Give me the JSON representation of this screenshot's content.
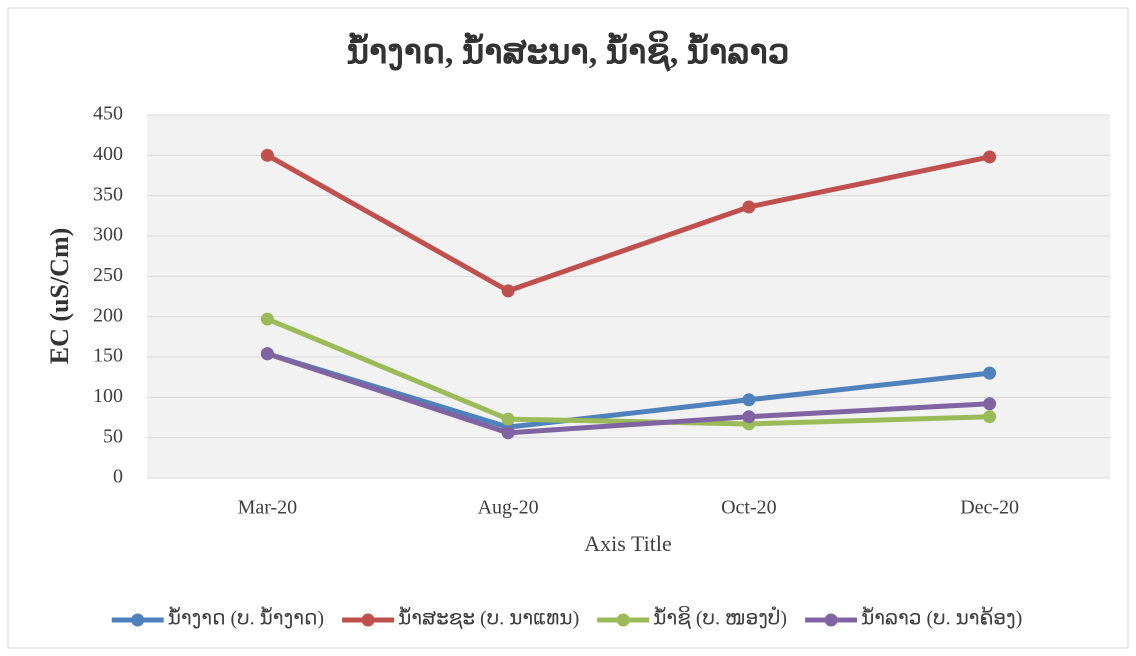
{
  "chart_data": {
    "type": "line",
    "title": "ນ້ຳງາດ, ນ້ຳສະນາ, ນ້ຳຊິ, ນ້ຳລາວ",
    "x_label": "Axis Title",
    "y_label": "EC (uS/Cm)",
    "categories": [
      "Mar-20",
      "Aug-20",
      "Oct-20",
      "Dec-20"
    ],
    "series": [
      {
        "name": "ນ້ຳງາດ (ບ. ນ້ຳງາດ)",
        "color": "#4f81bd",
        "values": [
          154,
          63,
          97,
          130
        ]
      },
      {
        "name": "ນ້ຳສະຊະ (ບ. ນາແທນ)",
        "color": "#c0504d",
        "values": [
          400,
          232,
          336,
          398
        ]
      },
      {
        "name": "ນ້ຳຊິ (ບ. ໜອງປໍ)",
        "color": "#9bbb59",
        "values": [
          197,
          73,
          67,
          76
        ]
      },
      {
        "name": "ນ້ຳລາວ (ບ. ນາຄ້ອງ)",
        "color": "#8064a2",
        "values": [
          154,
          56,
          76,
          92
        ]
      }
    ],
    "ylim": [
      0,
      450
    ],
    "yticks": [
      0,
      50,
      100,
      150,
      200,
      250,
      300,
      350,
      400,
      450
    ],
    "grid": true,
    "legend": "bottom"
  }
}
